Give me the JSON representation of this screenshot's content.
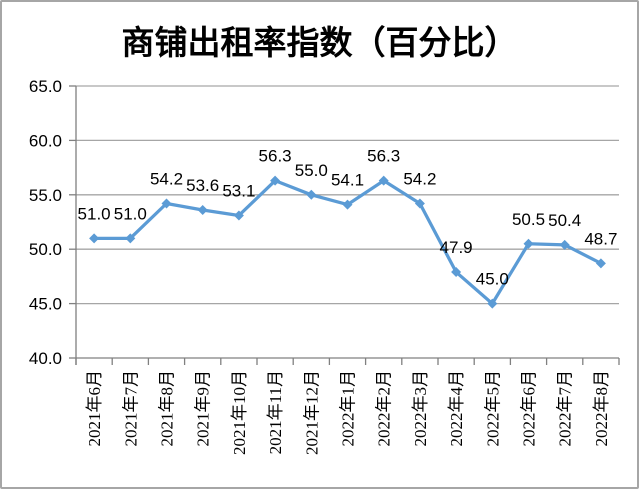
{
  "chart_title": "商铺出租率指数（百分比）",
  "chart_data": {
    "type": "line",
    "title": "商铺出租率指数（百分比）",
    "categories": [
      "2021年6月",
      "2021年7月",
      "2021年8月",
      "2021年9月",
      "2021年10月",
      "2021年11月",
      "2021年12月",
      "2022年1月",
      "2022年2月",
      "2022年3月",
      "2022年4月",
      "2022年5月",
      "2022年6月",
      "2022年7月",
      "2022年8月"
    ],
    "values": [
      51.0,
      51.0,
      54.2,
      53.6,
      53.1,
      56.3,
      55.0,
      54.1,
      56.3,
      54.2,
      47.9,
      45.0,
      50.5,
      50.4,
      48.7
    ],
    "data_labels": [
      "51.0",
      "51.0",
      "54.2",
      "53.6",
      "53.1",
      "56.3",
      "55.0",
      "54.1",
      "56.3",
      "54.2",
      "47.9",
      "45.0",
      "50.5",
      "50.4",
      "48.7"
    ],
    "xlabel": "",
    "ylabel": "",
    "ylim": [
      40.0,
      65.0
    ],
    "yticks": [
      {
        "value": 65.0,
        "label": "65.0"
      },
      {
        "value": 60.0,
        "label": "60.0"
      },
      {
        "value": 55.0,
        "label": "55.0"
      },
      {
        "value": 50.0,
        "label": "50.0"
      },
      {
        "value": 45.0,
        "label": "45.0"
      },
      {
        "value": 40.0,
        "label": "40.0"
      }
    ],
    "grid": true,
    "legend": "none",
    "marker": "diamond",
    "colors": {
      "series": "#5b9bd5",
      "gridline": "#a6a6a6",
      "axis": "#808080",
      "label_text": "#000000",
      "background": "#ffffff",
      "frame_border": "#a6a6a6"
    }
  }
}
